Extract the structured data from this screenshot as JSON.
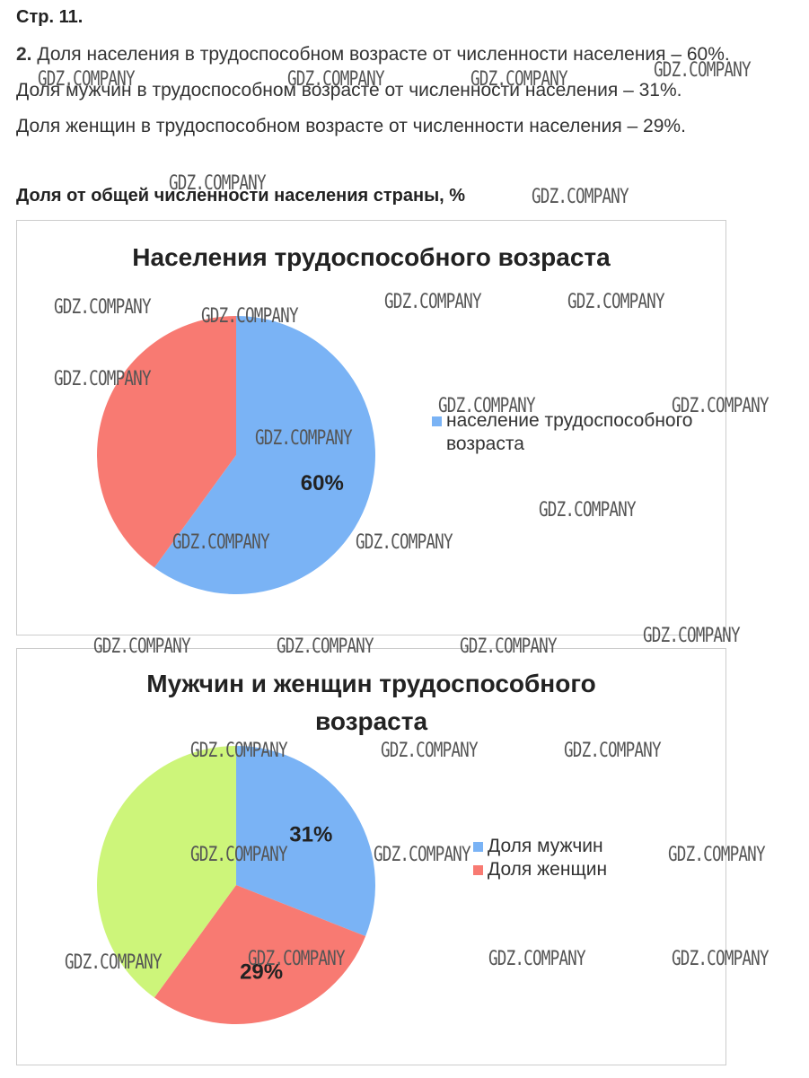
{
  "page": {
    "page_label": "Стр. 11.",
    "task_number": "2.",
    "lines": [
      "Доля населения в трудоспособном возрасте от численности населения – 60%.",
      "Доля мужчин в трудоспособном возрасте от численности населения – 31%.",
      "Доля женщин в трудоспособном возрасте от численности населения – 29%."
    ],
    "subtitle": "Доля от общей численности населения страны, %",
    "watermark": "GDZ.COMPANY"
  },
  "chart_data": [
    {
      "type": "pie",
      "title": "Населения трудоспособного возраста",
      "categories": [
        "население трудоспособного возраста",
        null
      ],
      "values": [
        60,
        40
      ],
      "value_labels": [
        "60%",
        null
      ],
      "colors": [
        "#7ab3f5",
        "#f87a72"
      ]
    },
    {
      "type": "pie",
      "title": "Мужчин и женщин трудоспособного возраста",
      "categories": [
        "Доля мужчин",
        "Доля женщин",
        null
      ],
      "values": [
        31,
        29,
        40
      ],
      "value_labels": [
        "31%",
        "29%",
        null
      ],
      "colors": [
        "#7ab3f5",
        "#f87a72",
        "#cdf57a"
      ]
    }
  ]
}
